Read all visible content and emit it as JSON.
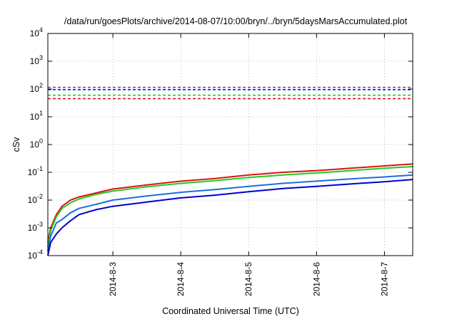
{
  "chart_data": {
    "type": "line",
    "title": "/data/run/goesPlots/archive/2014-08-07/10:00/bryn/../bryn/5daysMarsAccumulated.plot",
    "xlabel": "Coordinated Universal Time (UTC)",
    "ylabel": "cSv",
    "xlim": [
      "2014-08-02T01:00",
      "2014-08-07T10:00"
    ],
    "ylim": [
      0.0001,
      10000
    ],
    "yscale": "log",
    "grid": true,
    "x_ticks": [
      "2014-8-3",
      "2014-8-4",
      "2014-8-5",
      "2014-8-6",
      "2014-8-7"
    ],
    "y_ticks": [
      {
        "base": "10",
        "exp": "-4"
      },
      {
        "base": "10",
        "exp": "-3"
      },
      {
        "base": "10",
        "exp": "-2"
      },
      {
        "base": "10",
        "exp": "-1"
      },
      {
        "base": "10",
        "exp": "0"
      },
      {
        "base": "10",
        "exp": "1"
      },
      {
        "base": "10",
        "exp": "2"
      },
      {
        "base": "10",
        "exp": "3"
      },
      {
        "base": "10",
        "exp": "4"
      }
    ],
    "x": [
      "2014-08-02T01:00",
      "2014-08-02T02:00",
      "2014-08-02T04:00",
      "2014-08-02T06:00",
      "2014-08-02T09:00",
      "2014-08-02T12:00",
      "2014-08-02T18:00",
      "2014-08-03T00:00",
      "2014-08-03T12:00",
      "2014-08-04T00:00",
      "2014-08-04T12:00",
      "2014-08-05T00:00",
      "2014-08-05T12:00",
      "2014-08-06T00:00",
      "2014-08-06T12:00",
      "2014-08-07T00:00",
      "2014-08-07T10:00"
    ],
    "series": [
      {
        "color": "#dd1111",
        "style": "solid",
        "values": [
          0.0003,
          0.001,
          0.003,
          0.006,
          0.01,
          0.013,
          0.018,
          0.025,
          0.035,
          0.048,
          0.06,
          0.08,
          0.1,
          0.115,
          0.14,
          0.17,
          0.2
        ]
      },
      {
        "color": "#22cc22",
        "style": "solid",
        "values": [
          0.0002,
          0.0008,
          0.0025,
          0.005,
          0.008,
          0.011,
          0.016,
          0.021,
          0.03,
          0.04,
          0.05,
          0.065,
          0.08,
          0.095,
          0.115,
          0.14,
          0.16
        ]
      },
      {
        "color": "#1a6fe0",
        "style": "solid",
        "values": [
          0.00015,
          0.0005,
          0.0015,
          0.002,
          0.0035,
          0.005,
          0.007,
          0.01,
          0.014,
          0.019,
          0.024,
          0.031,
          0.04,
          0.048,
          0.058,
          0.068,
          0.08
        ]
      },
      {
        "color": "#0000cc",
        "style": "solid",
        "values": [
          0.0001,
          0.0003,
          0.0006,
          0.001,
          0.0018,
          0.003,
          0.0045,
          0.006,
          0.0085,
          0.012,
          0.015,
          0.02,
          0.026,
          0.031,
          0.038,
          0.046,
          0.055
        ]
      }
    ],
    "reference_lines": [
      {
        "color": "#9922cc",
        "style": "dashed",
        "value": 115
      },
      {
        "color": "#0000cc",
        "style": "dashed",
        "value": 95
      },
      {
        "color": "#22cc22",
        "style": "dashed",
        "value": 60
      },
      {
        "color": "#dd1111",
        "style": "dashed",
        "value": 45
      }
    ]
  }
}
